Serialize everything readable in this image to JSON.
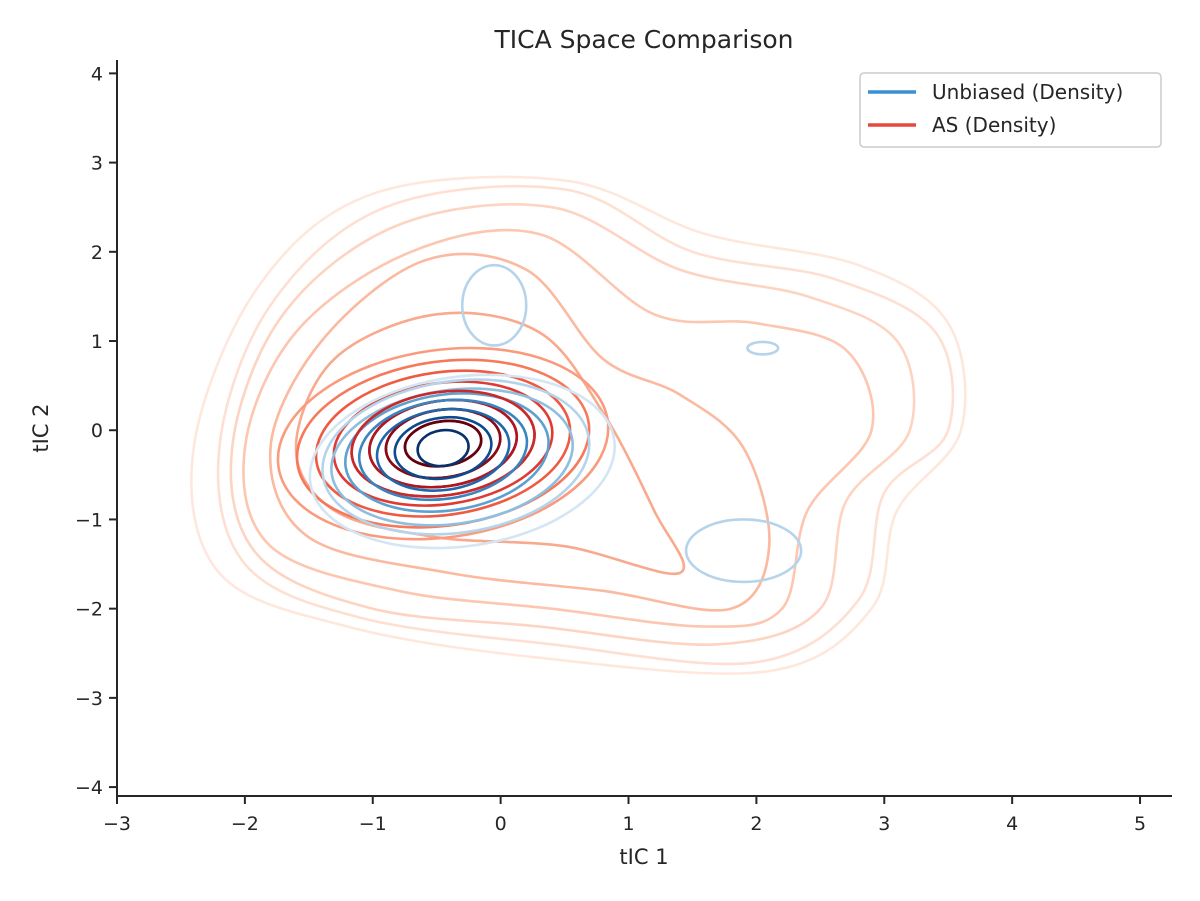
{
  "chart_data": {
    "type": "contour",
    "title": "TICA Space Comparison",
    "xlabel": "tIC 1",
    "ylabel": "tIC 2",
    "xlim": [
      -3,
      5.25
    ],
    "ylim": [
      -4.1,
      4.15
    ],
    "xticks": [
      -3,
      -2,
      -1,
      0,
      1,
      2,
      3,
      4,
      5
    ],
    "yticks": [
      -4,
      -3,
      -2,
      -1,
      0,
      1,
      2,
      3,
      4
    ],
    "xtick_labels": [
      "−3",
      "−2",
      "−1",
      "0",
      "1",
      "2",
      "3",
      "4",
      "5"
    ],
    "ytick_labels": [
      "−4",
      "−3",
      "−2",
      "−1",
      "0",
      "1",
      "2",
      "3",
      "4"
    ],
    "grid": false,
    "legend_position": "top-right",
    "series": [
      {
        "name": "Unbiased (Density)",
        "color": "#3a8fd2",
        "colormap": "Blues",
        "peak": [
          -0.45,
          -0.2
        ],
        "levels": [
          {
            "cx": -0.45,
            "cy": -0.2,
            "rx": 0.2,
            "ry": 0.2,
            "color": "#08306b"
          },
          {
            "cx": -0.45,
            "cy": -0.2,
            "rx": 0.38,
            "ry": 0.34,
            "color": "#0b4a8f"
          },
          {
            "cx": -0.45,
            "cy": -0.22,
            "rx": 0.52,
            "ry": 0.45,
            "color": "#1f66aa"
          },
          {
            "cx": -0.45,
            "cy": -0.22,
            "rx": 0.66,
            "ry": 0.55,
            "color": "#3a85c1"
          },
          {
            "cx": -0.42,
            "cy": -0.25,
            "rx": 0.8,
            "ry": 0.65,
            "color": "#5ea1d0"
          },
          {
            "cx": -0.38,
            "cy": -0.3,
            "rx": 0.95,
            "ry": 0.75,
            "color": "#8ebfe0"
          },
          {
            "cx": -0.35,
            "cy": -0.3,
            "rx": 1.05,
            "ry": 0.85,
            "color": "#b5d4eb"
          },
          {
            "cx": -0.3,
            "cy": -0.35,
            "rx": 1.2,
            "ry": 0.95,
            "color": "#d4e5f4"
          }
        ],
        "extra_lobes": [
          {
            "cx": -0.05,
            "cy": 1.4,
            "rx": 0.25,
            "ry": 0.45,
            "color": "#b5d4eb"
          },
          {
            "cx": 1.9,
            "cy": -1.35,
            "rx": 0.45,
            "ry": 0.35,
            "color": "#b5d4eb"
          },
          {
            "cx": 2.05,
            "cy": 0.92,
            "rx": 0.12,
            "ry": 0.07,
            "color": "#b5d4eb"
          }
        ]
      },
      {
        "name": "AS (Density)",
        "color": "#e8473b",
        "colormap": "Reds",
        "peak": [
          -0.45,
          -0.15
        ],
        "levels": [
          {
            "cx": -0.45,
            "cy": -0.15,
            "rx": 0.3,
            "ry": 0.25,
            "color": "#67000d"
          },
          {
            "cx": -0.45,
            "cy": -0.15,
            "rx": 0.45,
            "ry": 0.38,
            "color": "#8a0a17"
          },
          {
            "cx": -0.45,
            "cy": -0.15,
            "rx": 0.58,
            "ry": 0.48,
            "color": "#ae1620"
          },
          {
            "cx": -0.45,
            "cy": -0.15,
            "rx": 0.72,
            "ry": 0.58,
            "color": "#c92a29"
          },
          {
            "cx": -0.45,
            "cy": -0.15,
            "rx": 0.86,
            "ry": 0.68,
            "color": "#de3c32"
          },
          {
            "cx": -0.45,
            "cy": -0.15,
            "rx": 1.0,
            "ry": 0.8,
            "color": "#ee5a42"
          },
          {
            "cx": -0.45,
            "cy": -0.15,
            "rx": 1.15,
            "ry": 0.92,
            "color": "#f5795a"
          },
          {
            "cx": -0.45,
            "cy": -0.15,
            "rx": 1.3,
            "ry": 1.05,
            "color": "#f99b7c"
          }
        ],
        "outer_shapes": [
          {
            "points": [
              [
                -1.6,
                -0.2
              ],
              [
                -1.3,
                0.8
              ],
              [
                -0.5,
                1.3
              ],
              [
                0.3,
                1.1
              ],
              [
                0.8,
                0.2
              ],
              [
                1.2,
                -0.9
              ],
              [
                1.4,
                -1.6
              ],
              [
                0.5,
                -1.3
              ],
              [
                -0.5,
                -1.2
              ],
              [
                -1.3,
                -0.9
              ]
            ],
            "color": "#f9a98e"
          },
          {
            "points": [
              [
                -1.8,
                -0.2
              ],
              [
                -1.4,
                1.0
              ],
              [
                -0.6,
                1.9
              ],
              [
                0.2,
                1.8
              ],
              [
                0.8,
                0.8
              ],
              [
                1.4,
                0.4
              ],
              [
                1.9,
                -0.2
              ],
              [
                2.1,
                -1.3
              ],
              [
                1.8,
                -2.0
              ],
              [
                0.8,
                -1.8
              ],
              [
                -0.4,
                -1.6
              ],
              [
                -1.5,
                -1.2
              ]
            ],
            "color": "#fbb9a0"
          },
          {
            "points": [
              [
                -2.0,
                -0.2
              ],
              [
                -1.6,
                1.1
              ],
              [
                -0.7,
                2.0
              ],
              [
                0.3,
                2.2
              ],
              [
                1.2,
                1.3
              ],
              [
                2.0,
                1.2
              ],
              [
                2.7,
                0.9
              ],
              [
                2.9,
                0.0
              ],
              [
                2.4,
                -0.9
              ],
              [
                2.2,
                -2.0
              ],
              [
                1.6,
                -2.2
              ],
              [
                0.4,
                -2.0
              ],
              [
                -0.8,
                -1.8
              ],
              [
                -1.8,
                -1.3
              ]
            ],
            "color": "#fcc6b0"
          },
          {
            "points": [
              [
                -2.1,
                -0.2
              ],
              [
                -1.7,
                1.3
              ],
              [
                -0.8,
                2.3
              ],
              [
                0.4,
                2.5
              ],
              [
                1.4,
                1.8
              ],
              [
                2.4,
                1.5
              ],
              [
                3.1,
                1.0
              ],
              [
                3.2,
                0.0
              ],
              [
                2.7,
                -0.8
              ],
              [
                2.5,
                -2.0
              ],
              [
                1.7,
                -2.4
              ],
              [
                0.3,
                -2.2
              ],
              [
                -1.0,
                -2.0
              ],
              [
                -1.9,
                -1.4
              ]
            ],
            "color": "#fdd4c2"
          },
          {
            "points": [
              [
                -2.2,
                -0.2
              ],
              [
                -1.8,
                1.4
              ],
              [
                -0.9,
                2.5
              ],
              [
                0.5,
                2.7
              ],
              [
                1.5,
                2.0
              ],
              [
                2.6,
                1.7
              ],
              [
                3.4,
                1.1
              ],
              [
                3.5,
                0.0
              ],
              [
                3.0,
                -0.7
              ],
              [
                2.8,
                -1.9
              ],
              [
                2.0,
                -2.6
              ],
              [
                0.4,
                -2.4
              ],
              [
                -1.1,
                -2.1
              ],
              [
                -2.0,
                -1.5
              ]
            ],
            "color": "#fee0d2"
          },
          {
            "points": [
              [
                -2.4,
                -0.2
              ],
              [
                -1.9,
                1.6
              ],
              [
                -1.0,
                2.65
              ],
              [
                0.5,
                2.8
              ],
              [
                1.6,
                2.2
              ],
              [
                2.8,
                1.85
              ],
              [
                3.5,
                1.2
              ],
              [
                3.6,
                0.0
              ],
              [
                3.1,
                -0.9
              ],
              [
                2.9,
                -2.0
              ],
              [
                2.1,
                -2.7
              ],
              [
                0.3,
                -2.55
              ],
              [
                -1.2,
                -2.2
              ],
              [
                -2.2,
                -1.6
              ]
            ],
            "color": "#fee8dd"
          }
        ]
      }
    ]
  }
}
